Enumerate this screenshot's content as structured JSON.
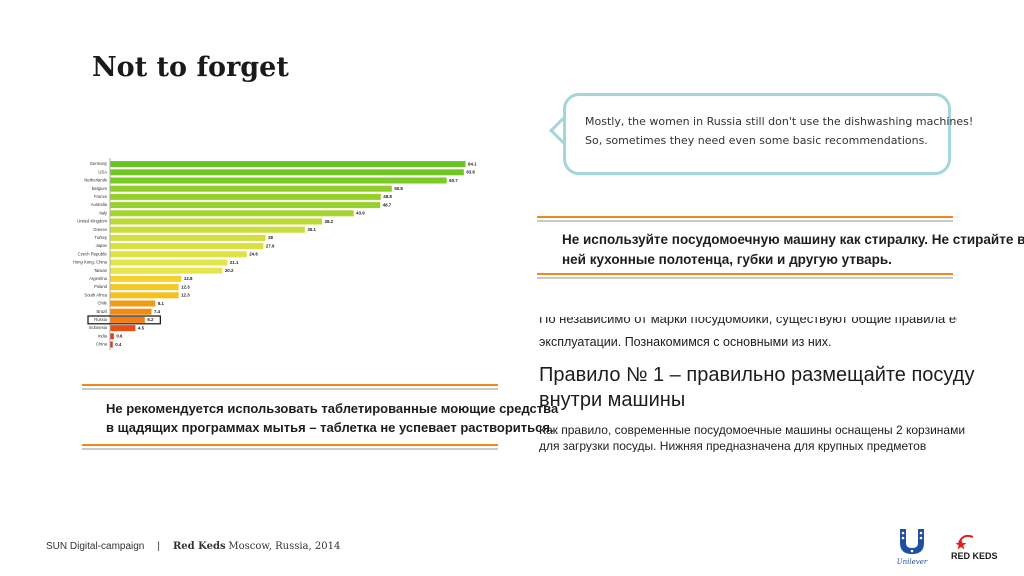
{
  "slide": {
    "title": "Not to forget",
    "bubble": {
      "line1": "Mostly, the women in Russia still don't use the dishwashing machines!",
      "line2": "So, sometimes they need even some basic recommendations."
    },
    "ru_notice_1": {
      "line1": "Не используйте посудомоечную машину как стиралку. Не стирайте в",
      "line2": "ней кухонные полотенца, губки и другую утварь."
    },
    "ru_notice_2": {
      "line1": "Не рекомендуется использовать таблетированные моющие средства",
      "line2": "в щадящих программах мытья – таблетка не успевает раствориться."
    },
    "ru_article": {
      "cut_line": "По независимо от марки посудомойки, существуют общие правила ее",
      "line_intro": "эксплуатации. Познакомимся с основными из них.",
      "rule_title_1": "Правило № 1 – правильно размещайте посуду",
      "rule_title_2": "внутри машины",
      "body_1": "Как правило, современные посудомоечные машины оснащены 2 корзинами",
      "body_2": "для загрузки посуды. Нижняя предназначена для крупных предметов"
    },
    "footer": {
      "campaign": "SUN Digital-campaign",
      "separator": "|",
      "brand": "Red Keds",
      "location": "Moscow, Russia, 2014"
    },
    "logos": {
      "unilever": "Unilever",
      "redkeds": "RED KEDS"
    }
  },
  "chart_data": {
    "type": "bar",
    "orientation": "horizontal",
    "categories": [
      "Germany",
      "USA",
      "Netherlands",
      "Belgium",
      "France",
      "Australia",
      "Italy",
      "United Kingdom",
      "Greece",
      "Turkey",
      "Japan",
      "Czech Republic",
      "Hong Kong, China",
      "Taiwan",
      "Argentina",
      "Poland",
      "South Africa",
      "Chile",
      "Brazil",
      "Russia",
      "Indonesia",
      "India",
      "China"
    ],
    "values": [
      64.1,
      63.8,
      60.7,
      50.8,
      48.8,
      48.7,
      43.9,
      38.2,
      35.1,
      28,
      27.6,
      24.6,
      21.1,
      20.2,
      12.8,
      12.3,
      12.3,
      8.1,
      7.4,
      6.2,
      4.5,
      0.6,
      0.4
    ],
    "value_labels": [
      "64.1",
      "63.8",
      "60.7",
      "50.8",
      "48.8",
      "48.7",
      "43.9",
      "38.2",
      "35.1",
      "28",
      "27.6",
      "24.6",
      "21.1",
      "20.2",
      "12.8",
      "12.3",
      "12.3",
      "8.1",
      "7.4",
      "6.2",
      "4.5",
      "0.6",
      "0.4"
    ],
    "highlight": "Russia",
    "colors": {
      "bars": [
        "#6cc323",
        "#72c624",
        "#7ac925",
        "#8dce27",
        "#93d028",
        "#96d12a",
        "#a5d42e",
        "#bcd936",
        "#c8dc3a",
        "#d4df3e",
        "#d9e040",
        "#dfe244",
        "#e4e348",
        "#e8e44c",
        "#f3d42d",
        "#f5c923",
        "#f6bf1c",
        "#f29a15",
        "#f08c12",
        "#ef7d10",
        "#ea4d15",
        "#e8381a",
        "#e62b1f"
      ],
      "axis": "#999999"
    }
  }
}
